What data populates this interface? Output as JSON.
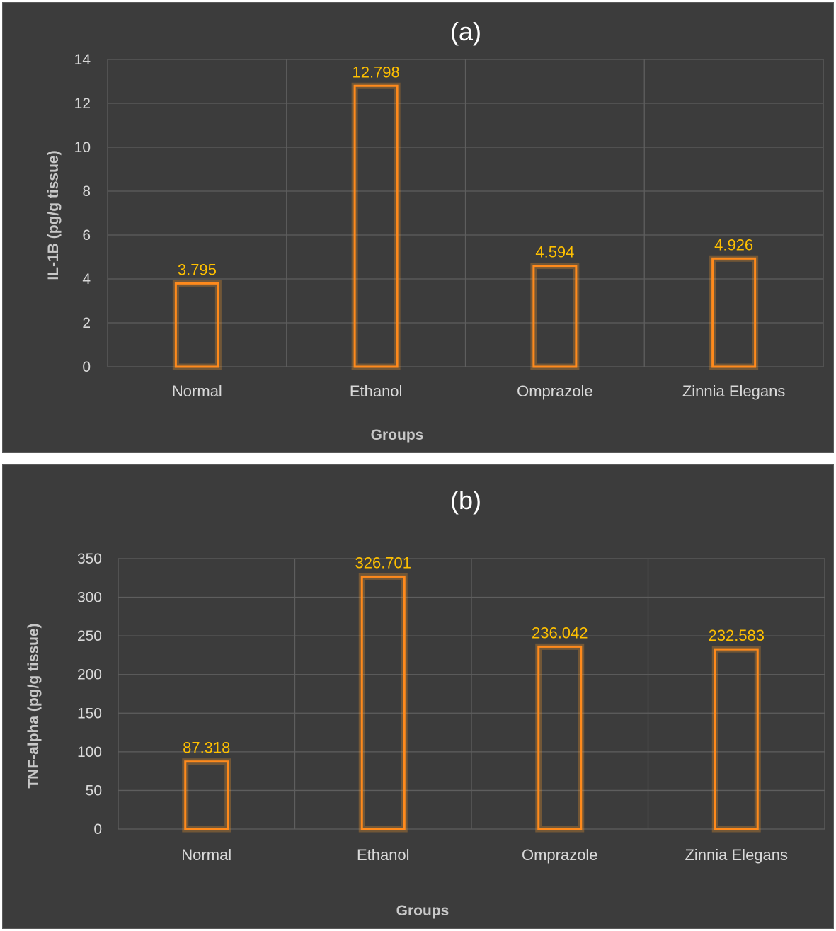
{
  "chart_data": [
    {
      "type": "bar",
      "panel_label": "(a)",
      "categories": [
        "Normal",
        "Ethanol",
        "Omprazole",
        "Zinnia Elegans"
      ],
      "values": [
        3.795,
        12.798,
        4.594,
        4.926
      ],
      "data_labels": [
        "3.795",
        "12.798",
        "4.594",
        "4.926"
      ],
      "xlabel": "Groups",
      "ylabel": "IL-1B (pg/g tissue)",
      "ylim": [
        0,
        14
      ],
      "yticks": [
        0,
        2,
        4,
        6,
        8,
        10,
        12,
        14
      ],
      "grid": true,
      "colors": {
        "bar": "#ff8a1c",
        "label": "#ffc000",
        "background": "#3c3c3c"
      }
    },
    {
      "type": "bar",
      "panel_label": "(b)",
      "categories": [
        "Normal",
        "Ethanol",
        "Omprazole",
        "Zinnia Elegans"
      ],
      "values": [
        87.318,
        326.701,
        236.042,
        232.583
      ],
      "data_labels": [
        "87.318",
        "326.701",
        "236.042",
        "232.583"
      ],
      "xlabel": "Groups",
      "ylabel": "TNF-alpha (pg/g tissue)",
      "ylim": [
        0,
        350
      ],
      "yticks": [
        0,
        50,
        100,
        150,
        200,
        250,
        300,
        350
      ],
      "grid": true,
      "colors": {
        "bar": "#ff8a1c",
        "label": "#ffc000",
        "background": "#3c3c3c"
      }
    }
  ]
}
